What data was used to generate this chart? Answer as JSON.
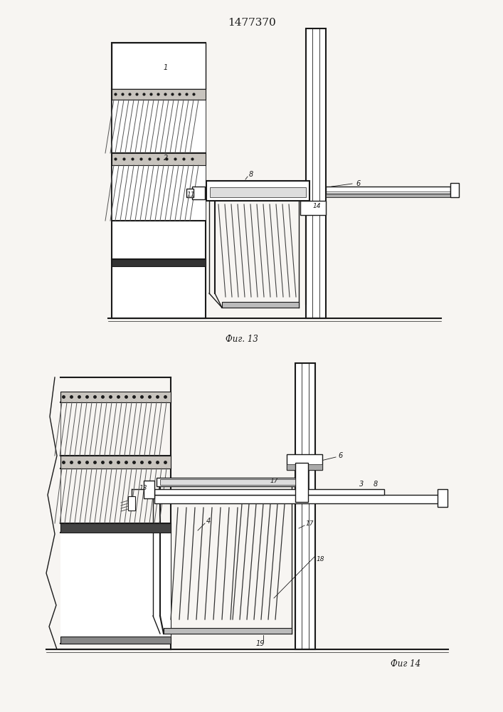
{
  "title": "1477370",
  "fig13_label": "Фиг. 13",
  "fig14_label": "Фиг 14",
  "bg_color": "#f7f5f2",
  "line_color": "#1a1a1a"
}
